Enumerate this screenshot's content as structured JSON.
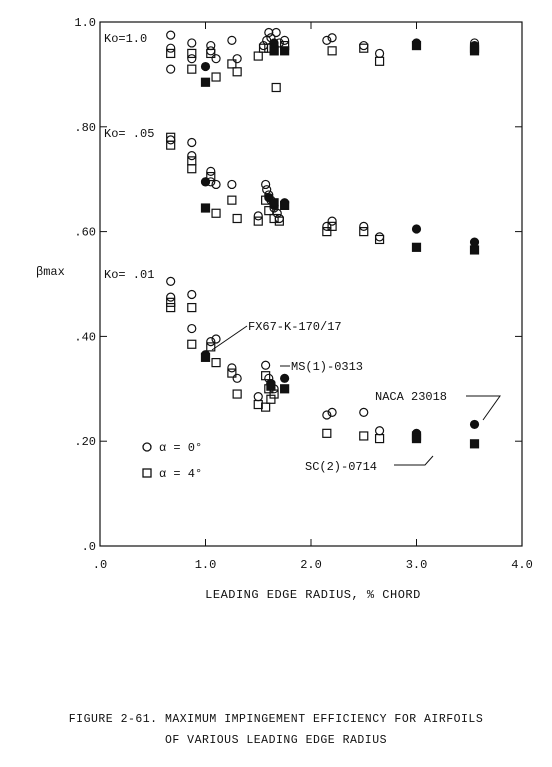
{
  "figure": {
    "caption_line1": "FIGURE 2-61.  MAXIMUM IMPINGEMENT EFFICIENCY FOR AIRFOILS",
    "caption_line2": "OF VARIOUS LEADING EDGE RADIUS"
  },
  "chart_data": {
    "type": "scatter",
    "xlabel": "LEADING EDGE RADIUS, % CHORD",
    "ylabel": "βmax",
    "xlim": [
      0,
      4.0
    ],
    "ylim": [
      0,
      1.0
    ],
    "x_ticks": [
      0,
      1.0,
      2.0,
      3.0,
      4.0
    ],
    "x_tick_labels": [
      ".0",
      "1.0",
      "2.0",
      "3.0",
      "4.0"
    ],
    "y_ticks": [
      0,
      0.2,
      0.4,
      0.6,
      0.8,
      1.0
    ],
    "y_tick_labels": [
      ".0",
      ".20",
      ".40",
      ".60",
      ".80",
      "1.0"
    ],
    "grid": false,
    "group_labels": [
      {
        "text": "Ko=1.0",
        "x": 0.0,
        "y": 0.98
      },
      {
        "text": "Ko= .05",
        "x": 0.0,
        "y": 0.785
      },
      {
        "text": "Ko= .01",
        "x": 0.0,
        "y": 0.51
      }
    ],
    "legend": {
      "placement": "bottom-left",
      "entries": [
        {
          "symbol": "circle",
          "label": "α = 0°"
        },
        {
          "symbol": "square",
          "label": "α = 4°"
        }
      ]
    },
    "annotations": [
      {
        "text": "FX67-K-170/17"
      },
      {
        "text": "MS(1)-0313"
      },
      {
        "text": "NACA 23018"
      },
      {
        "text": "SC(2)-0714"
      }
    ],
    "series": [
      {
        "symbol": "circle",
        "fill": "open",
        "points": [
          [
            0.67,
            0.975
          ],
          [
            0.67,
            0.95
          ],
          [
            0.67,
            0.91
          ],
          [
            0.87,
            0.96
          ],
          [
            0.87,
            0.93
          ],
          [
            1.05,
            0.955
          ],
          [
            1.05,
            0.945
          ],
          [
            1.1,
            0.93
          ],
          [
            1.25,
            0.965
          ],
          [
            1.3,
            0.93
          ],
          [
            1.55,
            0.955
          ],
          [
            1.58,
            0.965
          ],
          [
            1.6,
            0.98
          ],
          [
            1.62,
            0.97
          ],
          [
            1.65,
            0.955
          ],
          [
            1.67,
            0.98
          ],
          [
            1.7,
            0.96
          ],
          [
            1.75,
            0.965
          ],
          [
            2.15,
            0.965
          ],
          [
            2.2,
            0.97
          ],
          [
            2.5,
            0.955
          ],
          [
            2.65,
            0.94
          ],
          [
            3.55,
            0.96
          ],
          [
            0.67,
            0.775
          ],
          [
            0.87,
            0.77
          ],
          [
            0.87,
            0.745
          ],
          [
            1.0,
            0.695
          ],
          [
            1.05,
            0.715
          ],
          [
            1.05,
            0.695
          ],
          [
            1.1,
            0.69
          ],
          [
            1.25,
            0.69
          ],
          [
            1.5,
            0.63
          ],
          [
            1.57,
            0.69
          ],
          [
            1.58,
            0.68
          ],
          [
            1.6,
            0.67
          ],
          [
            1.62,
            0.66
          ],
          [
            1.65,
            0.645
          ],
          [
            1.68,
            0.635
          ],
          [
            1.7,
            0.625
          ],
          [
            2.15,
            0.61
          ],
          [
            2.2,
            0.62
          ],
          [
            2.5,
            0.61
          ],
          [
            2.65,
            0.59
          ],
          [
            0.67,
            0.505
          ],
          [
            0.67,
            0.475
          ],
          [
            0.87,
            0.48
          ],
          [
            0.87,
            0.415
          ],
          [
            1.05,
            0.39
          ],
          [
            1.1,
            0.395
          ],
          [
            1.25,
            0.34
          ],
          [
            1.3,
            0.32
          ],
          [
            1.5,
            0.285
          ],
          [
            1.57,
            0.345
          ],
          [
            1.6,
            0.32
          ],
          [
            1.62,
            0.31
          ],
          [
            1.65,
            0.3
          ],
          [
            2.15,
            0.25
          ],
          [
            2.2,
            0.255
          ],
          [
            2.5,
            0.255
          ],
          [
            2.65,
            0.22
          ]
        ]
      },
      {
        "symbol": "circle",
        "fill": "solid",
        "points": [
          [
            1.0,
            0.915
          ],
          [
            1.65,
            0.96
          ],
          [
            3.0,
            0.96
          ],
          [
            3.55,
            0.955
          ],
          [
            1.0,
            0.695
          ],
          [
            1.6,
            0.665
          ],
          [
            1.65,
            0.65
          ],
          [
            1.75,
            0.655
          ],
          [
            3.0,
            0.605
          ],
          [
            3.55,
            0.58
          ],
          [
            1.0,
            0.365
          ],
          [
            1.62,
            0.31
          ],
          [
            1.75,
            0.32
          ],
          [
            3.0,
            0.215
          ],
          [
            3.55,
            0.232
          ]
        ]
      },
      {
        "symbol": "square",
        "fill": "open",
        "points": [
          [
            0.67,
            0.94
          ],
          [
            0.87,
            0.94
          ],
          [
            0.87,
            0.91
          ],
          [
            1.05,
            0.94
          ],
          [
            1.1,
            0.895
          ],
          [
            1.25,
            0.92
          ],
          [
            1.3,
            0.905
          ],
          [
            1.5,
            0.935
          ],
          [
            1.55,
            0.95
          ],
          [
            1.6,
            0.95
          ],
          [
            1.65,
            0.945
          ],
          [
            1.67,
            0.875
          ],
          [
            1.75,
            0.955
          ],
          [
            2.2,
            0.945
          ],
          [
            2.5,
            0.95
          ],
          [
            2.65,
            0.925
          ],
          [
            3.55,
            0.95
          ],
          [
            0.67,
            0.78
          ],
          [
            0.67,
            0.765
          ],
          [
            0.87,
            0.735
          ],
          [
            0.87,
            0.72
          ],
          [
            1.05,
            0.705
          ],
          [
            1.1,
            0.635
          ],
          [
            1.25,
            0.66
          ],
          [
            1.3,
            0.625
          ],
          [
            1.5,
            0.62
          ],
          [
            1.57,
            0.66
          ],
          [
            1.6,
            0.64
          ],
          [
            1.65,
            0.625
          ],
          [
            1.7,
            0.62
          ],
          [
            2.15,
            0.6
          ],
          [
            2.2,
            0.61
          ],
          [
            2.5,
            0.6
          ],
          [
            2.65,
            0.585
          ],
          [
            0.67,
            0.465
          ],
          [
            0.67,
            0.455
          ],
          [
            0.87,
            0.455
          ],
          [
            0.87,
            0.385
          ],
          [
            1.05,
            0.38
          ],
          [
            1.1,
            0.35
          ],
          [
            1.25,
            0.33
          ],
          [
            1.3,
            0.29
          ],
          [
            1.5,
            0.27
          ],
          [
            1.57,
            0.325
          ],
          [
            1.6,
            0.3
          ],
          [
            1.62,
            0.28
          ],
          [
            1.57,
            0.265
          ],
          [
            1.65,
            0.29
          ],
          [
            2.15,
            0.215
          ],
          [
            2.5,
            0.21
          ],
          [
            2.65,
            0.205
          ],
          [
            3.0,
            0.21
          ]
        ]
      },
      {
        "symbol": "square",
        "fill": "solid",
        "points": [
          [
            1.0,
            0.885
          ],
          [
            1.65,
            0.945
          ],
          [
            1.75,
            0.945
          ],
          [
            3.0,
            0.955
          ],
          [
            3.55,
            0.945
          ],
          [
            1.0,
            0.645
          ],
          [
            1.65,
            0.655
          ],
          [
            1.75,
            0.65
          ],
          [
            3.0,
            0.57
          ],
          [
            3.55,
            0.565
          ],
          [
            1.0,
            0.36
          ],
          [
            1.62,
            0.305
          ],
          [
            1.75,
            0.3
          ],
          [
            3.0,
            0.205
          ],
          [
            3.55,
            0.195
          ]
        ]
      }
    ]
  }
}
